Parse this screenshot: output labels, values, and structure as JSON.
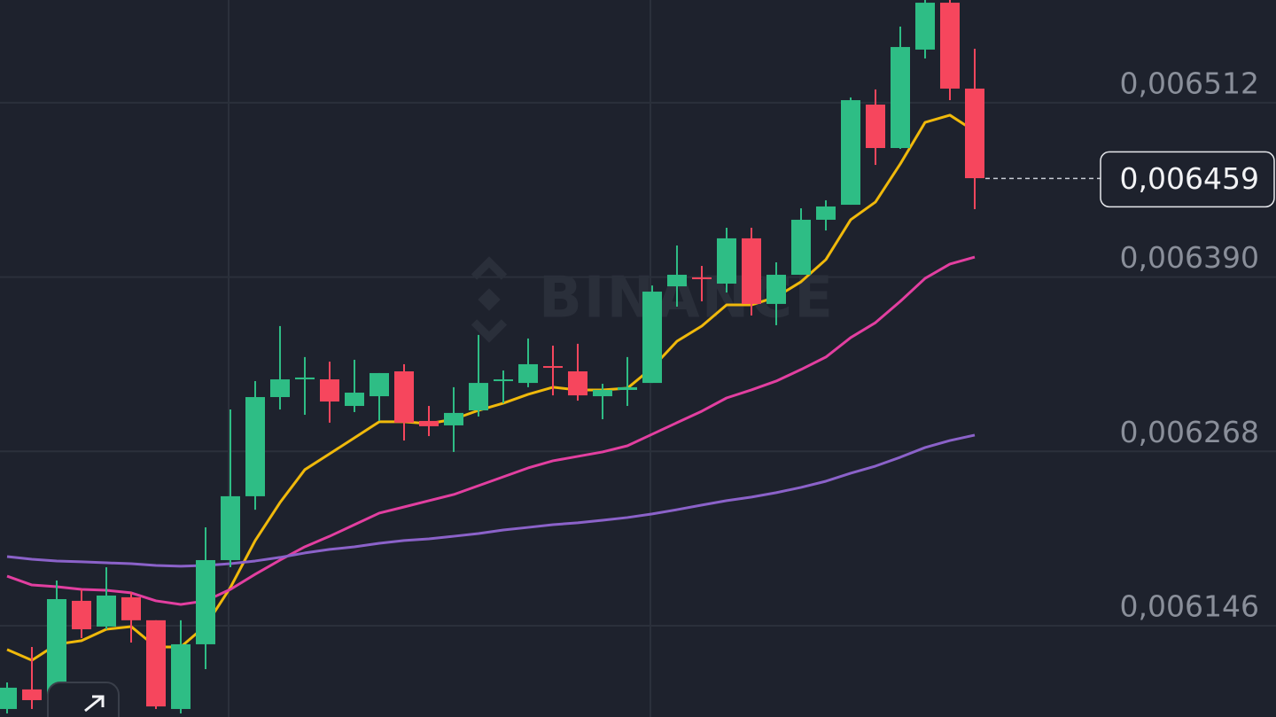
{
  "chart_data": {
    "type": "candlestick",
    "watermark": "BINANCE",
    "ylim": [
      0.0060821,
      0.0065839
    ],
    "yticks": [
      {
        "value": 0.006512,
        "label": "0,006512"
      },
      {
        "value": 0.00639,
        "label": "0,006390"
      },
      {
        "value": 0.006268,
        "label": "0,006268"
      },
      {
        "value": 0.006146,
        "label": "0,006146"
      }
    ],
    "grid": true,
    "last_price": {
      "value": 0.006459,
      "label": "0,006459"
    },
    "up_color": "#2ebd85",
    "down_color": "#f6465d",
    "open": [
      0.0060877,
      0.0061014,
      0.0060939,
      0.0061634,
      0.0061454,
      0.0061659,
      0.0061498,
      0.0060877,
      0.006133,
      0.0061919,
      0.0062366,
      0.006306,
      0.0063184,
      0.0063184,
      0.0062998,
      0.0063066,
      0.006324,
      0.0062893,
      0.0062862,
      0.0062967,
      0.0063178,
      0.0063159,
      0.0063277,
      0.006324,
      0.0063066,
      0.006311,
      0.0063159,
      0.0063835,
      0.0063898,
      0.0063854,
      0.0064171,
      0.0063712,
      0.0063916,
      0.0064301,
      0.0064406,
      0.0065107,
      0.0064803,
      0.0065492,
      0.006582,
      0.0065219
    ],
    "high": [
      0.0061063,
      0.0061311,
      0.0061776,
      0.0061714,
      0.0061869,
      0.0061696,
      0.0061498,
      0.0061498,
      0.0062148,
      0.0062973,
      0.0063172,
      0.0063557,
      0.006334,
      0.0063308,
      0.0063321,
      0.0063228,
      0.006329,
      0.0062998,
      0.0063129,
      0.0063495,
      0.0063246,
      0.006347,
      0.006342,
      0.0063433,
      0.0063153,
      0.006334,
      0.0063841,
      0.0064121,
      0.0063978,
      0.0064245,
      0.0064245,
      0.0064003,
      0.0064381,
      0.0064437,
      0.0065157,
      0.0065213,
      0.0065653,
      0.0065839,
      0.0065839,
      0.0065498
    ],
    "low": [
      0.0060846,
      0.0060877,
      0.0060908,
      0.0061373,
      0.0061435,
      0.0061342,
      0.0060877,
      0.0060846,
      0.0061156,
      0.0061869,
      0.0062272,
      0.0062973,
      0.0062936,
      0.0062881,
      0.0062955,
      0.0062893,
      0.0062756,
      0.0062787,
      0.0062676,
      0.0062924,
      0.0063017,
      0.0063129,
      0.0063072,
      0.0063035,
      0.0062905,
      0.0062998,
      0.0063159,
      0.0063693,
      0.006373,
      0.0063792,
      0.0063631,
      0.0063563,
      0.0063916,
      0.0064226,
      0.0064406,
      0.0064685,
      0.0064797,
      0.006543,
      0.0065138,
      0.0064375
    ],
    "close": [
      0.0061026,
      0.0060939,
      0.0061646,
      0.0061435,
      0.0061671,
      0.0061498,
      0.0060895,
      0.006133,
      0.0061919,
      0.0062366,
      0.006306,
      0.0063184,
      0.0063197,
      0.0063029,
      0.0063091,
      0.0063228,
      0.0062881,
      0.0062856,
      0.0062949,
      0.0063159,
      0.0063184,
      0.006329,
      0.0063271,
      0.0063072,
      0.006311,
      0.0063129,
      0.0063798,
      0.0063916,
      0.0063885,
      0.0064171,
      0.0063712,
      0.0063916,
      0.0064301,
      0.0064394,
      0.0065138,
      0.0064803,
      0.006551,
      0.006582,
      0.0065219,
      0.0064592
    ],
    "lines": [
      {
        "color": "#f0b90b",
        "values": [
          0.0061293,
          0.0061218,
          0.006133,
          0.0061355,
          0.0061435,
          0.0061454,
          0.0061311,
          0.0061311,
          0.006146,
          0.0061727,
          0.0062056,
          0.0062322,
          0.0062552,
          0.0062663,
          0.0062775,
          0.0062887,
          0.0062887,
          0.0062874,
          0.0062905,
          0.0062967,
          0.0063017,
          0.0063079,
          0.0063129,
          0.006311,
          0.006311,
          0.0063122,
          0.0063265,
          0.0063451,
          0.0063557,
          0.0063705,
          0.0063705,
          0.0063761,
          0.0063867,
          0.0064022,
          0.0064301,
          0.0064425,
          0.0064692,
          0.0064983,
          0.0065033,
          0.0064921
        ]
      },
      {
        "color": "#e23fa0",
        "values": [
          0.0061807,
          0.0061745,
          0.0061733,
          0.0061714,
          0.0061708,
          0.006169,
          0.0061634,
          0.0061609,
          0.0061634,
          0.0061714,
          0.006182,
          0.0061919,
          0.0062012,
          0.0062086,
          0.0062167,
          0.0062248,
          0.0062291,
          0.0062335,
          0.0062378,
          0.006244,
          0.0062502,
          0.0062564,
          0.0062614,
          0.0062645,
          0.0062676,
          0.0062719,
          0.00628,
          0.0062881,
          0.0062961,
          0.0063054,
          0.006311,
          0.0063172,
          0.0063253,
          0.006334,
          0.0063476,
          0.0063581,
          0.006373,
          0.0063891,
          0.0063991,
          0.006404
        ]
      },
      {
        "color": "#8b62c9",
        "values": [
          0.0061944,
          0.0061925,
          0.0061913,
          0.0061907,
          0.00619,
          0.0061894,
          0.0061882,
          0.0061876,
          0.0061882,
          0.0061894,
          0.0061913,
          0.0061938,
          0.0061969,
          0.0061994,
          0.0062012,
          0.0062037,
          0.0062056,
          0.0062068,
          0.0062086,
          0.0062105,
          0.006213,
          0.0062148,
          0.0062167,
          0.006218,
          0.0062198,
          0.0062217,
          0.0062242,
          0.0062272,
          0.0062304,
          0.0062335,
          0.006236,
          0.0062391,
          0.0062428,
          0.0062471,
          0.0062527,
          0.0062577,
          0.0062639,
          0.0062707,
          0.0062756,
          0.0062794
        ]
      }
    ]
  }
}
